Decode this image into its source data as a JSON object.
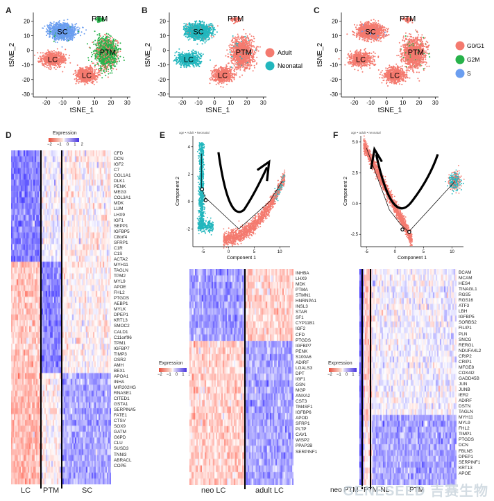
{
  "panels": {
    "A": {
      "label": "A",
      "xlabel": "tSNE_1",
      "ylabel": "tSNE_2",
      "clusters": [
        "SC",
        "PTM",
        "LC",
        "LC"
      ]
    },
    "B": {
      "label": "B",
      "xlabel": "tSNE_1",
      "ylabel": "tSNE_2",
      "clusters": [
        "SC",
        "PTM",
        "LC",
        "LC"
      ],
      "legend": [
        "Adult",
        "Neonatal"
      ]
    },
    "C": {
      "label": "C",
      "xlabel": "tSNE_1",
      "ylabel": "tSNE_2",
      "clusters": [
        "SC",
        "PTM",
        "LC",
        "LC"
      ],
      "legend": [
        "G0/G1",
        "G2M",
        "S"
      ]
    },
    "D": {
      "label": "D",
      "legend_title": "Expression",
      "legend_ticks": [
        "−2",
        "−1",
        "0",
        "1",
        "2"
      ],
      "genes": [
        "CFD",
        "DCN",
        "IGF2",
        "C7",
        "COL1A1",
        "DLK1",
        "PENK",
        "MEG3",
        "COL3A1",
        "MDK",
        "LUM",
        "LHX9",
        "IGF1",
        "SEPP1",
        "IGFBP5",
        "C8orf4",
        "SFRP1",
        "C1R",
        "C1S",
        "ACTA2",
        "MYH11",
        "TAGLN",
        "TPM2",
        "MYL9",
        "APOE",
        "FHL2",
        "PTGDS",
        "AEBP1",
        "MYLK",
        "DPEP1",
        "KRT13",
        "SMOC2",
        "CALD1",
        "C11orf96",
        "TPM1",
        "IGFBP7",
        "TIMP3",
        "OSR2",
        "AMH",
        "BEX1",
        "APOA1",
        "INHA",
        "MIR202HG",
        "RNASE1",
        "CITED1",
        "GSTA1",
        "SERPINA5",
        "FATE1",
        "CTSV",
        "SOX9",
        "GATM",
        "G6PD",
        "CLU",
        "SUSD3",
        "TNNI3",
        "ABRACL",
        "COPE"
      ],
      "groups": [
        "LC",
        "PTM",
        "SC"
      ]
    },
    "E": {
      "label": "E",
      "legend_small": "age • Adult • Neonatal",
      "xlabel": "Component 1",
      "ylabel": "Component 2",
      "xticks": [
        "-5",
        "0",
        "5",
        "10"
      ],
      "yticks": [
        "4",
        "2",
        "0",
        "-2"
      ],
      "legend_title": "Expression",
      "legend_ticks": [
        "−2",
        "−1",
        "0",
        "1",
        "2"
      ],
      "genes": [
        "INHBA",
        "LHX9",
        "MDK",
        "PTMA",
        "STMN1",
        "HNRNPA1",
        "INSL3",
        "STAR",
        "SF1",
        "CYP11B1",
        "IGF2",
        "CFD",
        "PTGDS",
        "IGFBP7",
        "PENK",
        "S100A6",
        "ADIRF",
        "LGALS3",
        "DPT",
        "IGF1",
        "GSN",
        "MGP",
        "ANXA2",
        "CST3",
        "TM4SF1",
        "IGFBP6",
        "APOD",
        "SFRP1",
        "PLTP",
        "CAV1",
        "WISP2",
        "PPAP2B",
        "SERPINF1"
      ],
      "groups": [
        "neo LC",
        "adult LC"
      ]
    },
    "F": {
      "label": "F",
      "legend_small": "age • adult • neonatal",
      "xlabel": "Component 1",
      "ylabel": "Component 2",
      "xticks": [
        "-5",
        "0",
        "5",
        "10"
      ],
      "yticks": [
        "5.0",
        "2.5",
        "0.0",
        "-2.5"
      ],
      "legend_title": "Expression",
      "legend_ticks": [
        "−2",
        "−1",
        "0",
        "1",
        "2"
      ],
      "genes": [
        "BCAM",
        "MCAM",
        "HES4",
        "TINAGL1",
        "RGS5",
        "RGS16",
        "ATF3",
        "LBH",
        "IGFBP5",
        "SORBS2",
        "FILIP1",
        "PLN",
        "SNCG",
        "RERGL",
        "NDUFA4L2",
        "CRIP2",
        "CRIP1",
        "MFGE8",
        "COX4I2",
        "GADD45B",
        "JUN",
        "JUNB",
        "IER2",
        "ADIRF",
        "DSTN",
        "TAGLN",
        "MYH11",
        "MYL9",
        "FHL2",
        "TIMP1",
        "PTGDS",
        "DCN",
        "FBLN5",
        "DPEP1",
        "SERPINF1",
        "KRT13",
        "APOE"
      ],
      "groups": [
        "neo PTM",
        "PTM-NL",
        "PTM"
      ]
    }
  },
  "axis_ticks": {
    "x": [
      "-20",
      "-10",
      "0",
      "10",
      "20",
      "30"
    ],
    "y": [
      "20",
      "10",
      "0",
      "-10",
      "-20",
      "-30"
    ]
  },
  "colors": {
    "salmon": "#f47a6f",
    "teal": "#22b6bd",
    "green": "#27b24a",
    "blue": "#6b9ef0"
  },
  "watermark": "GENESEED 吉赛生物"
}
